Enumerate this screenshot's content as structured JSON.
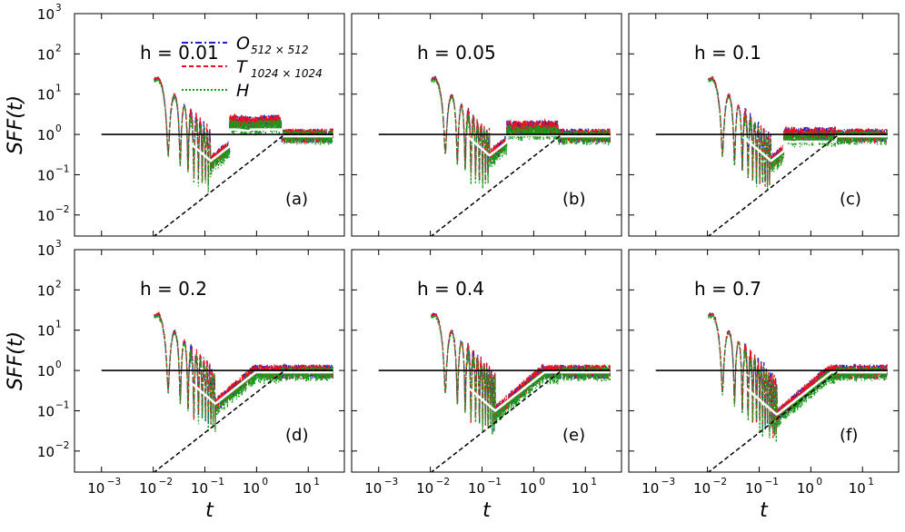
{
  "chart_data": {
    "type": "line",
    "layout": "2x3 grid of panels, shared log axes",
    "xlabel": "t",
    "ylabel": "SFF(t)",
    "xscale": "log",
    "yscale": "log",
    "xlim": [
      0.0003,
      50
    ],
    "ylim": [
      0.003,
      1000
    ],
    "x_ticks": [
      {
        "base": "10",
        "exp": "−3",
        "value": 0.001
      },
      {
        "base": "10",
        "exp": "−2",
        "value": 0.01
      },
      {
        "base": "10",
        "exp": "−1",
        "value": 0.1
      },
      {
        "base": "10",
        "exp": "0",
        "value": 1
      },
      {
        "base": "10",
        "exp": "1",
        "value": 10
      }
    ],
    "y_ticks": [
      {
        "base": "10",
        "exp": "3",
        "value": 1000
      },
      {
        "base": "10",
        "exp": "2",
        "value": 100
      },
      {
        "base": "10",
        "exp": "1",
        "value": 10
      },
      {
        "base": "10",
        "exp": "0",
        "value": 1
      },
      {
        "base": "10",
        "exp": "−1",
        "value": 0.1
      },
      {
        "base": "10",
        "exp": "−2",
        "value": 0.01
      }
    ],
    "legend": {
      "location": "top (panel a)",
      "entries": [
        {
          "main": "O",
          "sub": "512 × 512",
          "color": "#1f1fcc",
          "style": "dash-dot"
        },
        {
          "main": "T",
          "sub": "1024 × 1024",
          "color": "#e8141e",
          "style": "dashed"
        },
        {
          "main": "H",
          "sub": "",
          "color": "#1a9a1a",
          "style": "dotted"
        }
      ]
    },
    "reference_lines": [
      {
        "name": "plateau",
        "y": 1,
        "color": "#000000",
        "style": "solid"
      },
      {
        "name": "ramp",
        "color": "#000000",
        "style": "dashed"
      },
      {
        "name": "averaged",
        "color": "#ffffff",
        "style": "solid"
      }
    ],
    "panels": [
      {
        "id": "a",
        "h": "h = 0.01",
        "tag": "(a)",
        "dip_t": 0.13,
        "dip_v": 0.22,
        "bump": 2.2
      },
      {
        "id": "b",
        "h": "h = 0.05",
        "tag": "(b)",
        "dip_t": 0.14,
        "dip_v": 0.3,
        "bump": 1.6
      },
      {
        "id": "c",
        "h": "h = 0.1",
        "tag": "(c)",
        "dip_t": 0.17,
        "dip_v": 0.22,
        "bump": 1.1
      },
      {
        "id": "d",
        "h": "h = 0.2",
        "tag": "(d)",
        "dip_t": 0.16,
        "dip_v": 0.15,
        "bump": 0.8
      },
      {
        "id": "e",
        "h": "h = 0.4",
        "tag": "(e)",
        "dip_t": 0.18,
        "dip_v": 0.1,
        "bump": 0.75
      },
      {
        "id": "f",
        "h": "h = 0.7",
        "tag": "(f)",
        "dip_t": 0.22,
        "dip_v": 0.08,
        "bump": 0.6
      }
    ]
  }
}
